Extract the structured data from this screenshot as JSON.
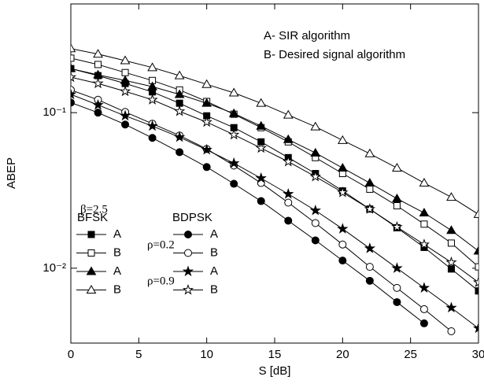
{
  "chart_data": {
    "type": "line",
    "x_label": "S [dB]",
    "y_label": "ABEP",
    "annotations": [
      "A- SIR algorithm",
      "B- Desired signal algorithm",
      "β=2.5"
    ],
    "legend_groups": [
      "BFSK",
      "BDPSK"
    ],
    "legend_params": [
      "ρ=0.2",
      "ρ=0.9"
    ],
    "log_y": true,
    "xlim": [
      0,
      30
    ],
    "xticks": [
      0,
      5,
      10,
      15,
      20,
      25,
      30
    ],
    "ylim": [
      0.0033,
      0.5
    ],
    "yticks": [
      {
        "value": 0.1,
        "label": "10⁻¹"
      },
      {
        "value": 0.01,
        "label": "10⁻²"
      }
    ],
    "x": [
      0,
      2,
      4,
      6,
      8,
      10,
      12,
      14,
      16,
      18,
      20,
      22,
      24,
      26,
      28,
      30
    ],
    "series": [
      {
        "name": "A",
        "color": "#000000",
        "marker": "square",
        "filled": true,
        "values": [
          0.192,
          0.173,
          0.154,
          0.136,
          0.115,
          0.0954,
          0.0801,
          0.0649,
          0.0514,
          0.0406,
          0.0314,
          0.024,
          0.0182,
          0.0136,
          0.00988,
          0.00714
        ]
      },
      {
        "name": "B",
        "color": "#000000",
        "marker": "square",
        "filled": false,
        "values": [
          0.224,
          0.204,
          0.181,
          0.161,
          0.14,
          0.118,
          0.0977,
          0.0801,
          0.0649,
          0.0514,
          0.0406,
          0.0322,
          0.0252,
          0.0192,
          0.0145,
          0.0102
        ]
      },
      {
        "name": "A",
        "color": "#000000",
        "marker": "triangle",
        "filled": true,
        "values": [
          0.192,
          0.175,
          0.161,
          0.147,
          0.131,
          0.115,
          0.0988,
          0.082,
          0.0672,
          0.0551,
          0.0441,
          0.0353,
          0.028,
          0.0227,
          0.0175,
          0.0129
        ]
      },
      {
        "name": "B",
        "color": "#000000",
        "marker": "triangle",
        "filled": false,
        "values": [
          0.258,
          0.238,
          0.216,
          0.195,
          0.173,
          0.152,
          0.134,
          0.115,
          0.0966,
          0.0811,
          0.0664,
          0.0545,
          0.0441,
          0.0353,
          0.0286,
          0.0222
        ]
      },
      {
        "name": "A",
        "color": "#000000",
        "marker": "circle",
        "filled": true,
        "values": [
          0.116,
          0.1,
          0.0839,
          0.0688,
          0.0557,
          0.0447,
          0.0349,
          0.027,
          0.0202,
          0.0151,
          0.0112,
          0.0083,
          0.00605,
          0.00442,
          null,
          null
        ]
      },
      {
        "name": "B",
        "color": "#000000",
        "marker": "circle",
        "filled": false,
        "values": [
          0.14,
          0.121,
          0.101,
          0.0849,
          0.0713,
          0.0584,
          0.0457,
          0.0353,
          0.0264,
          0.0195,
          0.0142,
          0.0102,
          0.00747,
          0.00545,
          0.00393,
          null
        ]
      },
      {
        "name": "A",
        "color": "#000000",
        "marker": "star",
        "filled": true,
        "values": [
          0.131,
          0.112,
          0.0954,
          0.082,
          0.0696,
          0.0577,
          0.0473,
          0.0379,
          0.03,
          0.0235,
          0.0179,
          0.0134,
          0.01,
          0.00747,
          0.00557,
          0.00411
        ]
      },
      {
        "name": "B",
        "color": "#000000",
        "marker": "star",
        "filled": false,
        "values": [
          0.169,
          0.154,
          0.137,
          0.121,
          0.102,
          0.0869,
          0.0721,
          0.0592,
          0.0484,
          0.0388,
          0.0307,
          0.024,
          0.0184,
          0.0142,
          0.0109,
          0.00811
        ]
      }
    ]
  }
}
